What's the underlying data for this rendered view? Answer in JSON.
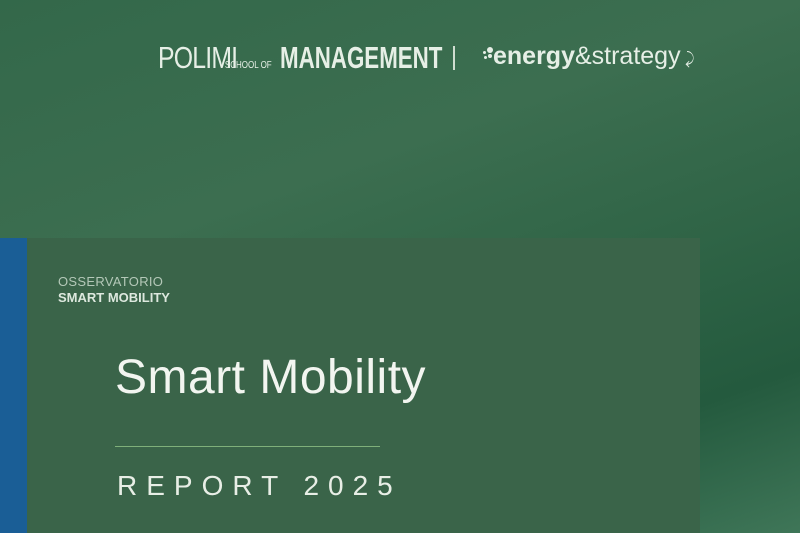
{
  "header": {
    "polimi_logo": {
      "main": "POLIMI",
      "school": "SCHOOL OF",
      "management": "MANAGEMENT"
    },
    "partner_logo": {
      "bold": "energy",
      "rest": "&strategy"
    }
  },
  "cover": {
    "observatory_label": "OSSERVATORIO",
    "observatory_name": "SMART MOBILITY",
    "title": "Smart Mobility",
    "subtitle": "REPORT 2025"
  },
  "colors": {
    "stripe": "#1a5e96",
    "panel": "#3a6449",
    "accent_line": "#7fb07a"
  }
}
